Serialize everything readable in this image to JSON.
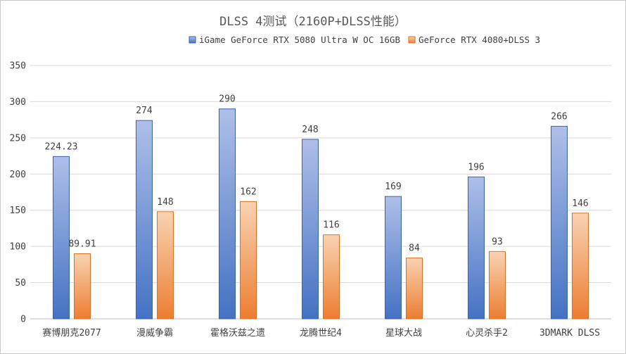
{
  "chart_data": {
    "type": "bar",
    "title": "DLSS 4测试（2160P+DLSS性能）",
    "categories": [
      "赛博朋克2077",
      "漫威争霸",
      "霍格沃兹之遗",
      "龙腾世纪4",
      "星球大战",
      "心灵杀手2",
      "3DMARK DLSS"
    ],
    "series": [
      {
        "name": "iGame GeForce RTX 5080 Ultra W OC 16GB",
        "values": [
          224.23,
          274,
          290,
          248,
          169,
          196,
          266
        ],
        "labels": [
          "224.23",
          "274",
          "290",
          "248",
          "169",
          "196",
          "266"
        ],
        "color_top": "#aebfe8",
        "color_bottom": "#4472c4",
        "stroke": "#3a63ad"
      },
      {
        "name": "GeForce RTX 4080+DLSS 3",
        "values": [
          89.91,
          148,
          162,
          116,
          84,
          93,
          146
        ],
        "labels": [
          "89.91",
          "148",
          "162",
          "116",
          "84",
          "93",
          "146"
        ],
        "color_top": "#f8d3b3",
        "color_bottom": "#ed7d31",
        "stroke": "#e07020"
      }
    ],
    "ylim": [
      0,
      350
    ],
    "yticks": [
      0,
      50,
      100,
      150,
      200,
      250,
      300,
      350
    ],
    "grid": true,
    "legend": "top"
  }
}
